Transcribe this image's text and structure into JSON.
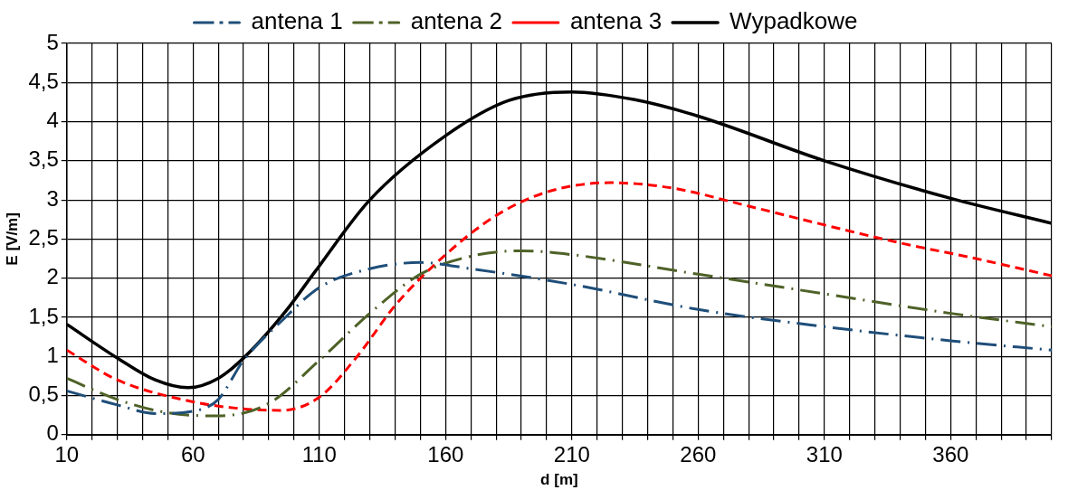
{
  "chart_data": {
    "type": "line",
    "xlabel": "d [m]",
    "ylabel": "E [V/m]",
    "xlim": [
      10,
      400
    ],
    "xticks": [
      10,
      60,
      110,
      160,
      210,
      260,
      310,
      360
    ],
    "ylim": [
      0,
      5
    ],
    "yticks": [
      0,
      {
        "value": 0.5,
        "label": "0,5"
      },
      1,
      {
        "value": 1.5,
        "label": "1,5"
      },
      2,
      {
        "value": 2.5,
        "label": "2,5"
      },
      3,
      {
        "value": 3.5,
        "label": "3,5"
      },
      4,
      {
        "value": 4.5,
        "label": "4,5"
      },
      5
    ],
    "grid": true,
    "legend": "top",
    "marker": "none",
    "series": [
      {
        "name": "antena 1",
        "color": "#1f4e79",
        "line_style": "dashdot",
        "x": [
          10,
          30,
          45,
          60,
          70,
          80,
          95,
          110,
          130,
          150,
          170,
          210,
          260,
          310,
          360,
          400
        ],
        "values": [
          0.56,
          0.38,
          0.27,
          0.3,
          0.45,
          0.95,
          1.45,
          1.88,
          2.12,
          2.2,
          2.12,
          1.92,
          1.6,
          1.38,
          1.2,
          1.08
        ]
      },
      {
        "name": "antena 2",
        "color": "#4f6228",
        "line_style": "dashdot",
        "x": [
          10,
          30,
          50,
          70,
          90,
          110,
          130,
          150,
          170,
          190,
          210,
          260,
          310,
          360,
          400
        ],
        "values": [
          0.72,
          0.45,
          0.28,
          0.24,
          0.4,
          0.95,
          1.55,
          2.05,
          2.28,
          2.35,
          2.3,
          2.05,
          1.8,
          1.55,
          1.38
        ]
      },
      {
        "name": "antena 3",
        "color": "#ff0000",
        "line_style": "dashed",
        "x": [
          10,
          30,
          60,
          80,
          95,
          110,
          125,
          140,
          160,
          180,
          200,
          225,
          250,
          280,
          310,
          340,
          370,
          400
        ],
        "values": [
          1.08,
          0.7,
          0.42,
          0.33,
          0.31,
          0.48,
          1.0,
          1.65,
          2.3,
          2.8,
          3.1,
          3.22,
          3.15,
          2.92,
          2.68,
          2.45,
          2.25,
          2.03
        ]
      },
      {
        "name": "Wypadkowe",
        "color": "#000000",
        "line_style": "solid",
        "x": [
          10,
          30,
          45,
          58,
          70,
          81,
          97,
          108,
          130,
          160,
          185,
          210,
          235,
          260,
          310,
          360,
          400
        ],
        "values": [
          1.41,
          0.98,
          0.7,
          0.6,
          0.72,
          1.01,
          1.59,
          2.07,
          3.0,
          3.82,
          4.27,
          4.38,
          4.28,
          4.07,
          3.5,
          3.02,
          2.7
        ]
      }
    ]
  }
}
